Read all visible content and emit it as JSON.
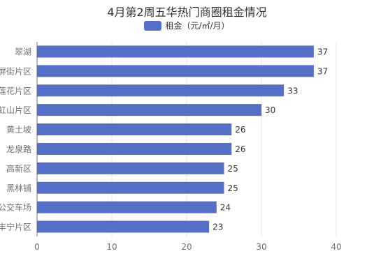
{
  "chart_data": {
    "type": "bar",
    "orientation": "horizontal",
    "title": "4月第2周五华热门商圈租金情况",
    "categories": [
      "翠湖",
      "屏街片区",
      "莲花片区",
      "虹山片区",
      "黄土坡",
      "龙泉路",
      "高新区",
      "黑林铺",
      "公交车场",
      "丰宁片区"
    ],
    "series": [
      {
        "name": "租金（元/㎡/月）",
        "values": [
          37,
          37,
          33,
          30,
          26,
          26,
          25,
          25,
          24,
          23
        ],
        "color": "#5470c6"
      }
    ],
    "xlim": [
      0,
      40
    ],
    "xticks": [
      0,
      10,
      20,
      30,
      40
    ],
    "grid": true,
    "legend_position": "top-center",
    "data_labels": true
  }
}
